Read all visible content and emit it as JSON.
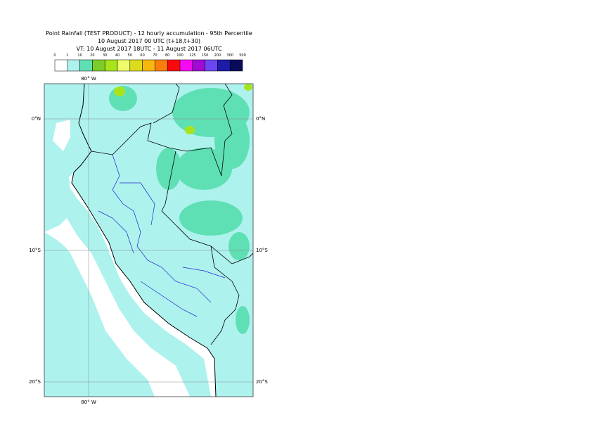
{
  "header": {
    "title": "Point Rainfall (TEST PRODUCT) - 12 hourly accumulation - 95th Percentile",
    "base_time": "10 August 2017 00 UTC (t+18,t+30)",
    "valid_time": "VT: 10 August 2017 18UTC - 11 August 2017 06UTC"
  },
  "legend": {
    "labels": [
      0,
      1,
      10,
      20,
      30,
      40,
      50,
      60,
      70,
      80,
      100,
      125,
      150,
      200,
      300,
      500
    ],
    "colors": [
      "#ffffff",
      "#aef2ee",
      "#5fe0b4",
      "#7ccd2a",
      "#a8e41c",
      "#eefc6a",
      "#dcdc1e",
      "#f6b80e",
      "#fb7d0a",
      "#fa0a0a",
      "#f40af4",
      "#a00ad2",
      "#6c46f0",
      "#1c1ca8",
      "#0a0a5a"
    ]
  },
  "map": {
    "lon_labels": [
      "80° W"
    ],
    "lat_labels": [
      "0°N",
      "10°S",
      "20°S"
    ]
  }
}
